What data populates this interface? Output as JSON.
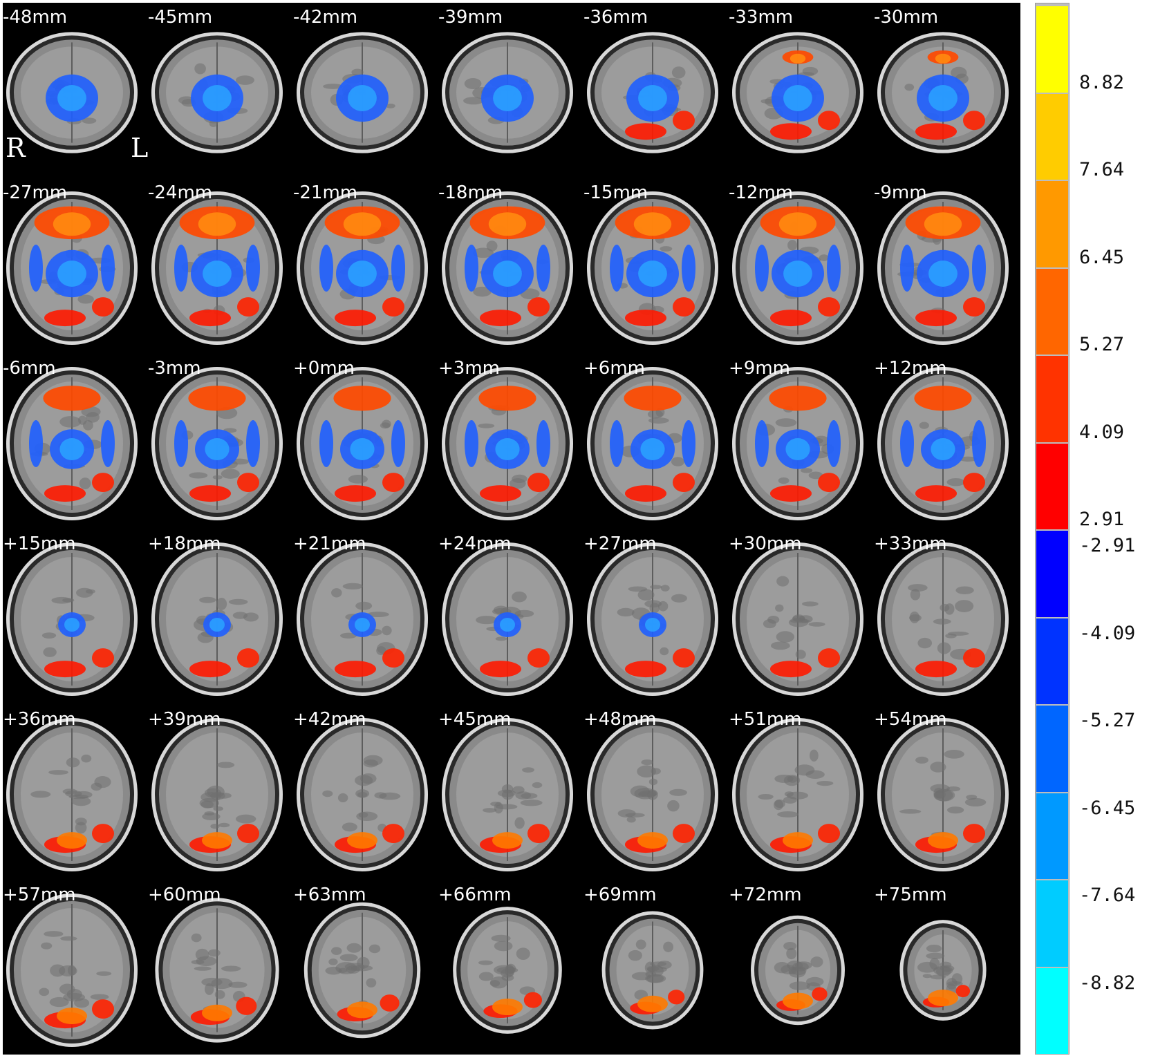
{
  "figure": {
    "orientation": {
      "right_label": "R",
      "left_label": "L"
    },
    "slices": [
      "-48mm",
      "-45mm",
      "-42mm",
      "-39mm",
      "-36mm",
      "-33mm",
      "-30mm",
      "-27mm",
      "-24mm",
      "-21mm",
      "-18mm",
      "-15mm",
      "-12mm",
      "-9mm",
      "-6mm",
      "-3mm",
      "+0mm",
      "+3mm",
      "+6mm",
      "+9mm",
      "+12mm",
      "+15mm",
      "+18mm",
      "+21mm",
      "+24mm",
      "+27mm",
      "+30mm",
      "+33mm",
      "+36mm",
      "+39mm",
      "+42mm",
      "+45mm",
      "+48mm",
      "+51mm",
      "+54mm",
      "+57mm",
      "+60mm",
      "+63mm",
      "+66mm",
      "+69mm",
      "+72mm",
      "+75mm"
    ]
  },
  "colorbar": {
    "segments": [
      "#ffff00",
      "#ffcc00",
      "#ff9900",
      "#ff6600",
      "#ff3300",
      "#ff0000",
      "#0000ff",
      "#0033ff",
      "#0066ff",
      "#0099ff",
      "#00ccff",
      "#00ffff"
    ],
    "labels": [
      "8.82",
      "7.64",
      "6.45",
      "5.27",
      "4.09",
      "2.91",
      "-2.91",
      "-4.09",
      "-5.27",
      "-6.45",
      "-7.64",
      "-8.82"
    ]
  }
}
